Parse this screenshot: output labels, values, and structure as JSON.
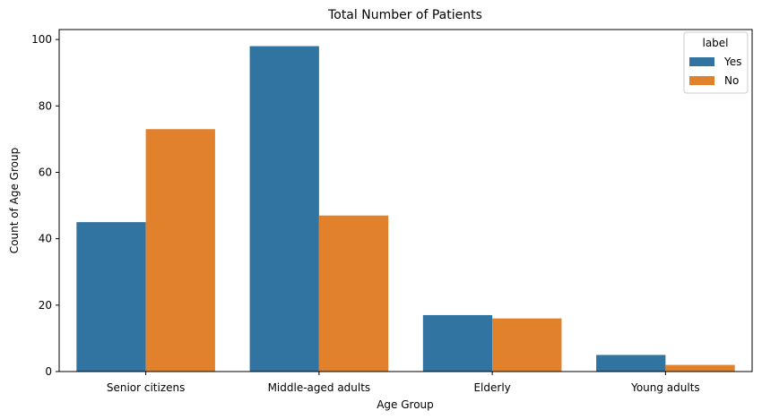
{
  "chart_data": {
    "type": "bar",
    "title": "Total Number of Patients",
    "xlabel": "Age Group",
    "ylabel": "Count of Age Group",
    "categories": [
      "Senior citizens",
      "Middle-aged adults",
      "Elderly",
      "Young adults"
    ],
    "series": [
      {
        "name": "Yes",
        "values": [
          45,
          98,
          17,
          5
        ],
        "color": "#3274a1"
      },
      {
        "name": "No",
        "values": [
          73,
          47,
          16,
          2
        ],
        "color": "#e1812c"
      }
    ],
    "ylim": [
      0,
      103
    ],
    "yticks": [
      0,
      20,
      40,
      60,
      80,
      100
    ],
    "grid": false,
    "legend": {
      "title": "label",
      "position": "top-right"
    }
  }
}
